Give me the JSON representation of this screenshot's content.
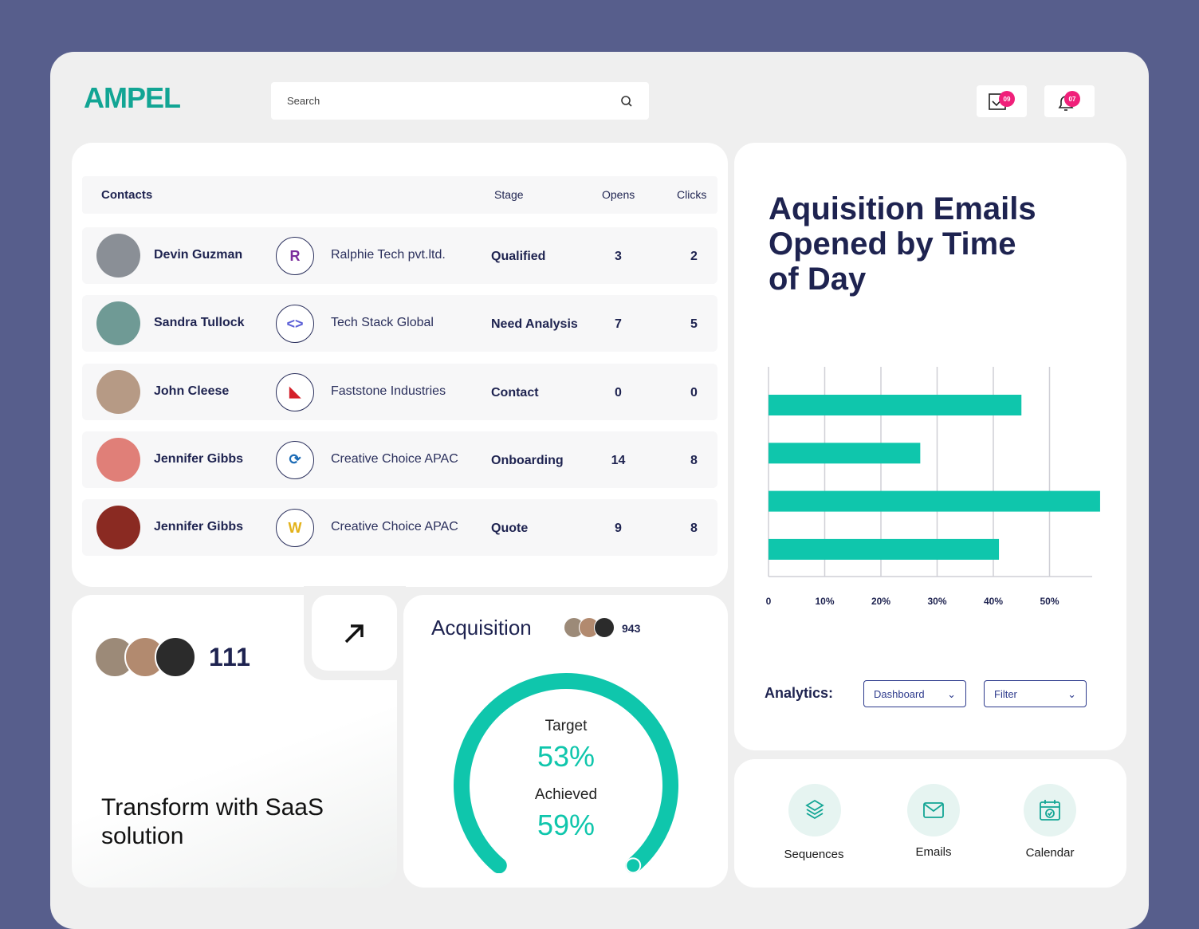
{
  "brand": "AMPEL",
  "search": {
    "placeholder": "Search"
  },
  "header": {
    "messages_badge": "09",
    "notifications_badge": "07"
  },
  "contacts": {
    "headers": {
      "contacts": "Contacts",
      "stage": "Stage",
      "opens": "Opens",
      "clicks": "Clicks"
    },
    "rows": [
      {
        "name": "Devin Guzman",
        "company": "Ralphie Tech pvt.ltd.",
        "stage": "Qualified",
        "opens": "3",
        "clicks": "2",
        "avatar_color": "#8a8f96",
        "logo": "R",
        "logo_color": "#7b2d9c"
      },
      {
        "name": "Sandra Tullock",
        "company": "Tech Stack Global",
        "stage": "Need Analysis",
        "opens": "7",
        "clicks": "5",
        "avatar_color": "#6f9a95",
        "logo": "<>",
        "logo_color": "#5b5fd6"
      },
      {
        "name": "John Cleese",
        "company": "Faststone Industries",
        "stage": "Contact",
        "opens": "0",
        "clicks": "0",
        "avatar_color": "#b69a85",
        "logo": "◣",
        "logo_color": "#d4202a"
      },
      {
        "name": "Jennifer Gibbs",
        "company": "Creative Choice APAC",
        "stage": "Onboarding",
        "opens": "14",
        "clicks": "8",
        "avatar_color": "#e07f78",
        "logo": "⟳",
        "logo_color": "#1c6bb5"
      },
      {
        "name": "Jennifer Gibbs",
        "company": "Creative Choice APAC",
        "stage": "Quote",
        "opens": "9",
        "clicks": "8",
        "avatar_color": "#8a2a22",
        "logo": "W",
        "logo_color": "#e3b21a"
      }
    ]
  },
  "promo": {
    "count": "111",
    "headline": "Transform with SaaS solution"
  },
  "acquisition": {
    "title": "Acquisition",
    "count": "943",
    "target_label": "Target",
    "target_value": "53%",
    "achieved_label": "Achieved",
    "achieved_value": "59%",
    "progress": 0.59
  },
  "chart_data": {
    "type": "bar",
    "orientation": "horizontal",
    "title": "Aquisition Emails Opened by Time of Day",
    "categories": [
      "",
      "",
      "",
      ""
    ],
    "values": [
      45,
      27,
      59,
      41
    ],
    "xlim": [
      0,
      58
    ],
    "xticks": [
      "0",
      "10%",
      "20%",
      "30%",
      "40%",
      "50%"
    ],
    "tick_values": [
      0,
      10,
      20,
      30,
      40,
      50
    ],
    "color": "#0fc6ac",
    "grid": true
  },
  "analytics": {
    "label": "Analytics:",
    "dropdown1": "Dashboard",
    "dropdown2": "Filter"
  },
  "quick_actions": [
    {
      "label": "Sequences"
    },
    {
      "label": "Emails"
    },
    {
      "label": "Calendar"
    }
  ],
  "colors": {
    "accent": "#0fc6ac",
    "brand": "#12a594",
    "badge": "#f0207a",
    "navy": "#1e2350"
  }
}
